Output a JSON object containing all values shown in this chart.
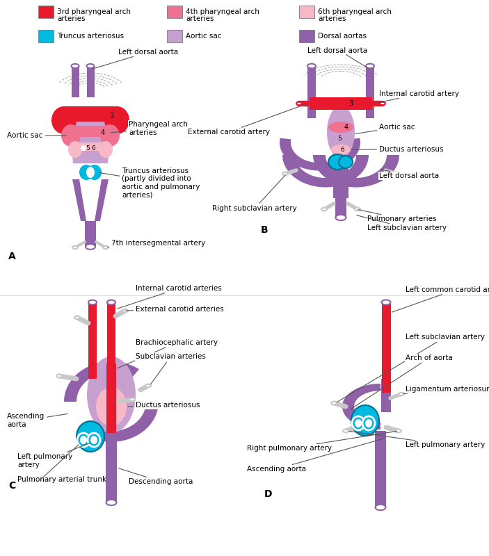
{
  "bg_color": "#ffffff",
  "colors": {
    "red": "#e8192c",
    "pink4": "#f07090",
    "pink6": "#f8b8c8",
    "blue": "#00b8e0",
    "aortic_sac": "#c8a0d0",
    "dorsal": "#9060a8",
    "outline": "#555555",
    "dashed": "#aaaaaa",
    "label_line": "#555555",
    "text": "#000000",
    "stub_color": "#c8c8c8"
  },
  "legend": {
    "items": [
      {
        "label": "3rd pharyngeal arch\narteries",
        "color": "#e8192c"
      },
      {
        "label": "4th pharyngeal arch\narteries",
        "color": "#f07090"
      },
      {
        "label": "6th pharyngeal arch\narteries",
        "color": "#f8b8c8"
      },
      {
        "label": "Truncus arteriosus",
        "color": "#00b8e0"
      },
      {
        "label": "Aortic sac",
        "color": "#c8a0d0"
      },
      {
        "label": "Dorsal aortas",
        "color": "#9060a8"
      }
    ]
  }
}
